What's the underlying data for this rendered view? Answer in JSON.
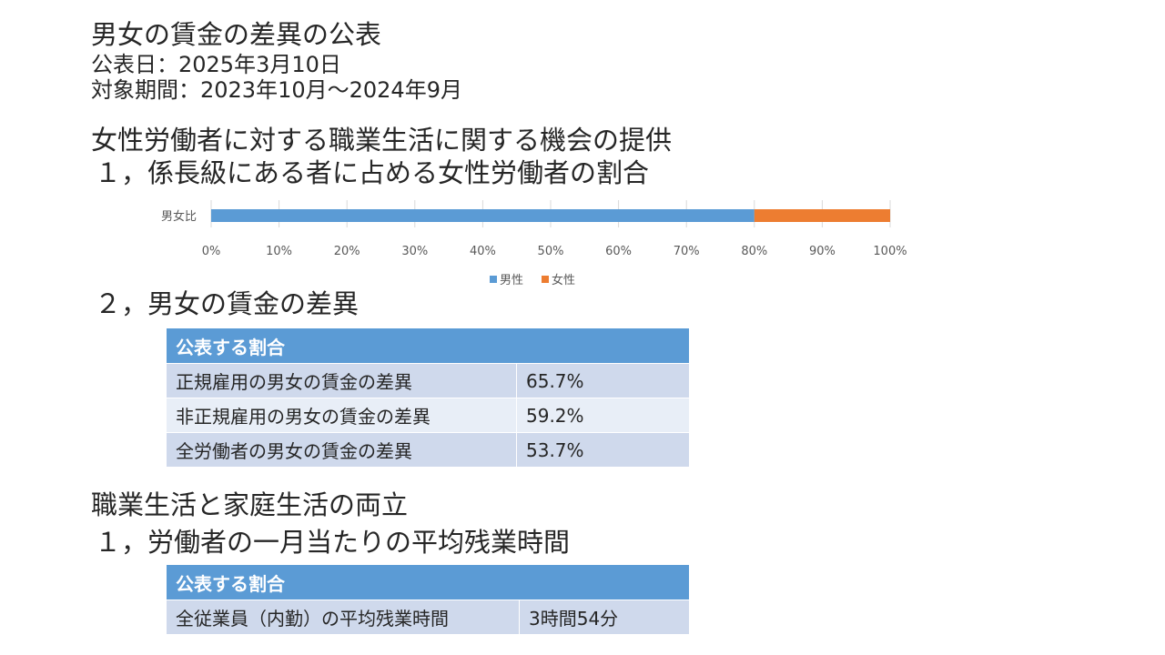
{
  "header": {
    "title": "男女の賃金の差異の公表",
    "published": "公表日：2025年3月10日",
    "period": "対象期間：2023年10月〜2024年9月"
  },
  "section1": {
    "heading": "女性労働者に対する職業生活に関する機会の提供",
    "item1_heading": "１，係長級にある者に占める女性労働者の割合",
    "item2_heading": "２，男女の賃金の差異",
    "table": {
      "header": "公表する割合",
      "rows": [
        {
          "label": "正規雇用の男女の賃金の差異",
          "value": "65.7%"
        },
        {
          "label": "非正規雇用の男女の賃金の差異",
          "value": "59.2%"
        },
        {
          "label": "全労働者の男女の賃金の差異",
          "value": "53.7%"
        }
      ]
    }
  },
  "section2": {
    "heading": "職業生活と家庭生活の両立",
    "item1_heading": "１，労働者の一月当たりの平均残業時間",
    "table": {
      "header": "公表する割合",
      "rows": [
        {
          "label": "全従業員（内勤）の平均残業時間",
          "value": "3時間54分"
        }
      ]
    }
  },
  "chart_data": {
    "type": "bar",
    "orientation": "horizontal",
    "stacked": "percent",
    "categories": [
      "男女比"
    ],
    "series": [
      {
        "name": "男性",
        "values": [
          80
        ],
        "color": "#5b9bd5"
      },
      {
        "name": "女性",
        "values": [
          20
        ],
        "color": "#ed7d31"
      }
    ],
    "xlim": [
      0,
      100
    ],
    "xticks": [
      "0%",
      "10%",
      "20%",
      "30%",
      "40%",
      "50%",
      "60%",
      "70%",
      "80%",
      "90%",
      "100%"
    ],
    "grid": true,
    "legend": "bottom"
  }
}
